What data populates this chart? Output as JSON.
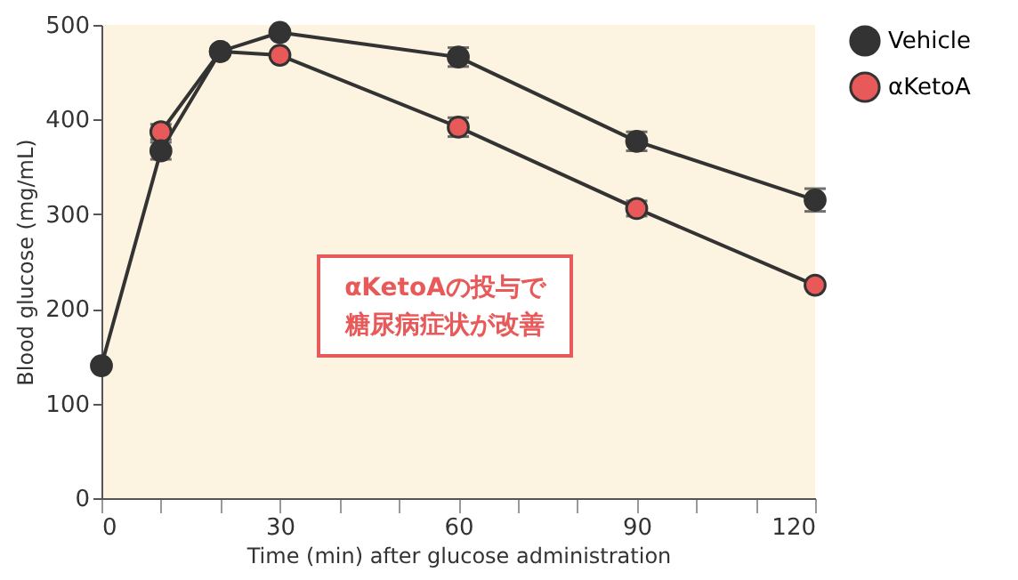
{
  "chart_data": {
    "type": "line",
    "xlabel": "Time (min) after glucose administration",
    "ylabel": "Blood glucose (mg/mL)",
    "x": [
      0,
      10,
      20,
      30,
      60,
      90,
      120
    ],
    "series": [
      {
        "name": "Vehicle",
        "color": "#333333",
        "values": [
          140,
          367,
          472,
          492,
          466,
          377,
          315
        ],
        "errors": [
          null,
          9,
          null,
          null,
          10,
          10,
          12
        ]
      },
      {
        "name": "αKetoA",
        "color": "#e85a5a",
        "x": [
          10,
          20,
          30,
          60,
          90,
          120
        ],
        "values": [
          387,
          472,
          468,
          392,
          306,
          225
        ],
        "errors": [
          8,
          null,
          null,
          10,
          8,
          null
        ]
      }
    ],
    "xlim": [
      0,
      120
    ],
    "ylim": [
      0,
      500
    ],
    "xticks": [
      0,
      {
        "value": 10,
        "label": null
      },
      {
        "value": 20,
        "label": null
      },
      30,
      {
        "value": 40,
        "label": null
      },
      {
        "value": 50,
        "label": null
      },
      60,
      {
        "value": 70,
        "label": null
      },
      {
        "value": 80,
        "label": null
      },
      90,
      {
        "value": 100,
        "label": null
      },
      {
        "value": 110,
        "label": null
      },
      120
    ],
    "yticks": [
      0,
      100,
      200,
      300,
      400,
      500
    ],
    "annotations": [
      "αKetoAの投与で",
      "糖尿病症状が改善"
    ],
    "grid": false,
    "legend": "top right",
    "marker": "circle",
    "line_style": "solid"
  }
}
